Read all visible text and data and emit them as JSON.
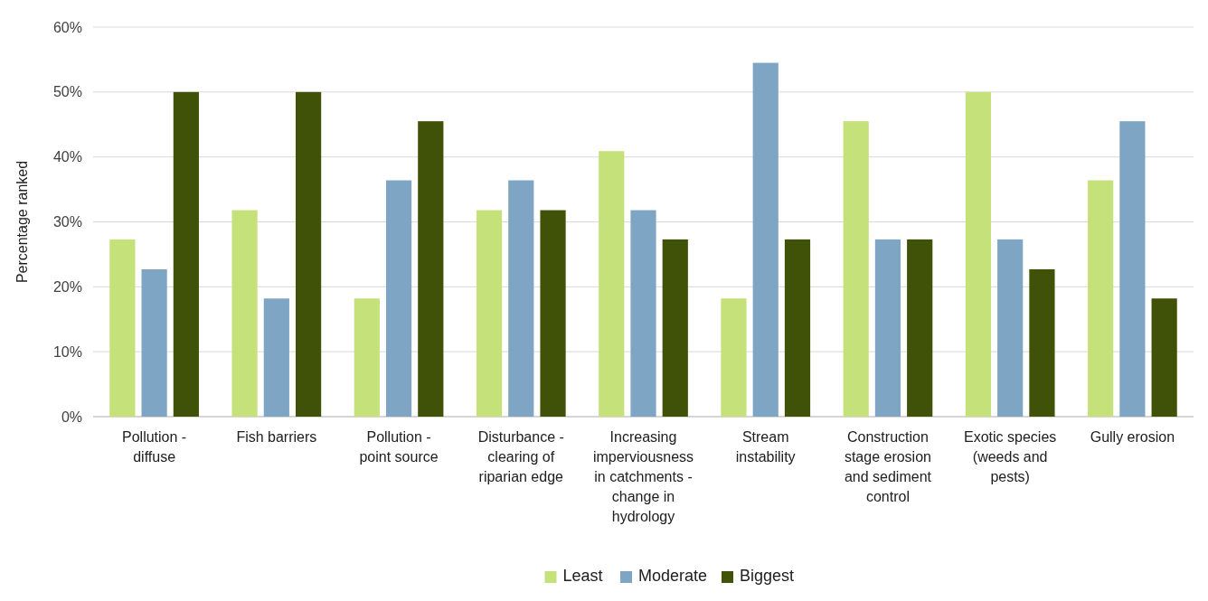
{
  "chart_data": {
    "type": "bar",
    "ylabel": "Percentage ranked",
    "categories": [
      "Pollution - diffuse",
      "Fish barriers",
      "Pollution - point source",
      "Disturbance - clearing of riparian edge",
      "Increasing imperviousness in catchments - change in hydrology",
      "Stream instability",
      "Construction stage erosion and sediment control",
      "Exotic species (weeds and pests)",
      "Gully erosion"
    ],
    "series": [
      {
        "name": "Least",
        "color": "#c5e17a",
        "values": [
          27.3,
          31.8,
          18.2,
          31.8,
          40.9,
          18.2,
          45.5,
          50,
          36.4
        ]
      },
      {
        "name": "Moderate",
        "color": "#7ea6c4",
        "values": [
          22.7,
          18.2,
          36.4,
          36.4,
          31.8,
          54.5,
          27.3,
          27.3,
          45.5
        ]
      },
      {
        "name": "Biggest",
        "color": "#3f5208",
        "values": [
          50,
          50,
          45.5,
          31.8,
          27.3,
          27.3,
          27.3,
          22.7,
          18.2
        ]
      }
    ],
    "ylim": [
      0,
      60
    ],
    "yticks": [
      {
        "value": 0,
        "label": "0%"
      },
      {
        "value": 10,
        "label": "10%"
      },
      {
        "value": 20,
        "label": "20%"
      },
      {
        "value": 30,
        "label": "30%"
      },
      {
        "value": 40,
        "label": "40%"
      },
      {
        "value": 50,
        "label": "50%"
      },
      {
        "value": 60,
        "label": "60%"
      }
    ],
    "grid": "y",
    "legend": "bottom"
  }
}
